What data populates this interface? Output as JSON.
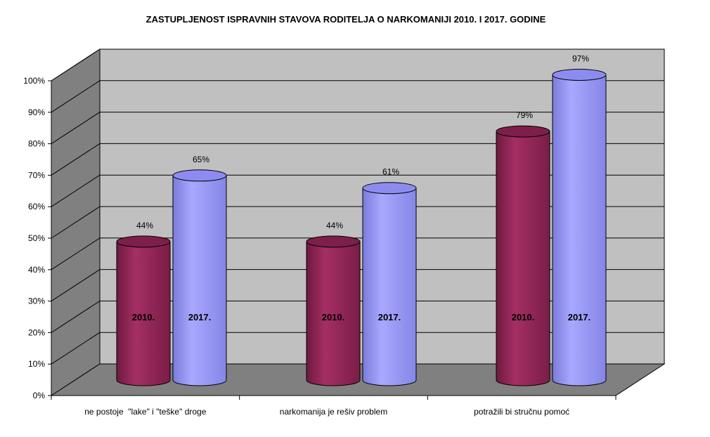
{
  "chart_data": {
    "type": "bar",
    "title": "ZASTUPLJENOST ISPRAVNIH STAVOVA RODITELJA O NARKOMANIJI 2010. I 2017. GODINE",
    "categories": [
      "ne postoje  \"lake\" i \"teške\" droge",
      "narkomanija je rešiv problem",
      "potražili bi stručnu pomoć"
    ],
    "series": [
      {
        "name": "2010.",
        "values": [
          44,
          44,
          79
        ],
        "color": "#8e2452"
      },
      {
        "name": "2017.",
        "values": [
          65,
          61,
          97
        ],
        "color": "#9999ff"
      }
    ],
    "value_labels": [
      [
        "44%",
        "44%",
        "79%"
      ],
      [
        "65%",
        "61%",
        "97%"
      ]
    ],
    "yticks": [
      "0%",
      "10%",
      "20%",
      "30%",
      "40%",
      "50%",
      "60%",
      "70%",
      "80%",
      "90%",
      "100%"
    ],
    "ylim": [
      0,
      100
    ],
    "grid": true,
    "style": "3d-cylinder",
    "wall_color": "#c0c0c0",
    "floor_color": "#808080"
  }
}
